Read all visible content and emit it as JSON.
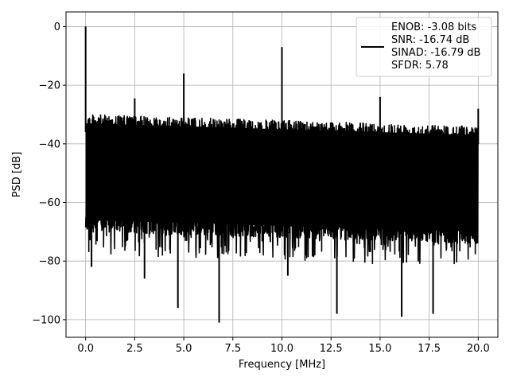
{
  "chart_data": {
    "type": "line",
    "title": "",
    "xlabel": "Frequency [MHz]",
    "ylabel": "PSD [dB]",
    "xlim": [
      -1.0,
      21.0
    ],
    "ylim": [
      -106.0,
      5.0
    ],
    "xticks": [
      0.0,
      2.5,
      5.0,
      7.5,
      10.0,
      12.5,
      15.0,
      17.5,
      20.0
    ],
    "xtick_labels": [
      "0.0",
      "2.5",
      "5.0",
      "7.5",
      "10.0",
      "12.5",
      "15.0",
      "17.5",
      "20.0"
    ],
    "yticks": [
      0,
      -20,
      -40,
      -60,
      -80,
      -100
    ],
    "ytick_labels": [
      "0",
      "−20",
      "−40",
      "−60",
      "−80",
      "−100"
    ],
    "grid": true,
    "legend": {
      "placement": "top-right",
      "entries": [
        "ENOB: -3.08 bits",
        "SNR: -16.74 dB",
        "SINAD: -16.79 dB",
        "SFDR: 5.78"
      ]
    },
    "series": [
      {
        "color": "#000000",
        "noise_band": {
          "upper_db_start": -30,
          "upper_db_end": -34,
          "lower_db_start": -68,
          "lower_db_end": -72
        },
        "peaks": [
          {
            "x": 0.0,
            "y": 0.0
          },
          {
            "x": 2.5,
            "y": -24.5
          },
          {
            "x": 5.0,
            "y": -16.0
          },
          {
            "x": 10.0,
            "y": -7.0
          },
          {
            "x": 15.0,
            "y": -24.0
          },
          {
            "x": 20.0,
            "y": -28.0
          }
        ],
        "dips": [
          {
            "x": 0.3,
            "y": -82
          },
          {
            "x": 3.0,
            "y": -86
          },
          {
            "x": 4.7,
            "y": -96
          },
          {
            "x": 6.8,
            "y": -101
          },
          {
            "x": 10.3,
            "y": -85
          },
          {
            "x": 12.8,
            "y": -98
          },
          {
            "x": 16.1,
            "y": -99
          },
          {
            "x": 17.7,
            "y": -98
          }
        ]
      }
    ]
  }
}
